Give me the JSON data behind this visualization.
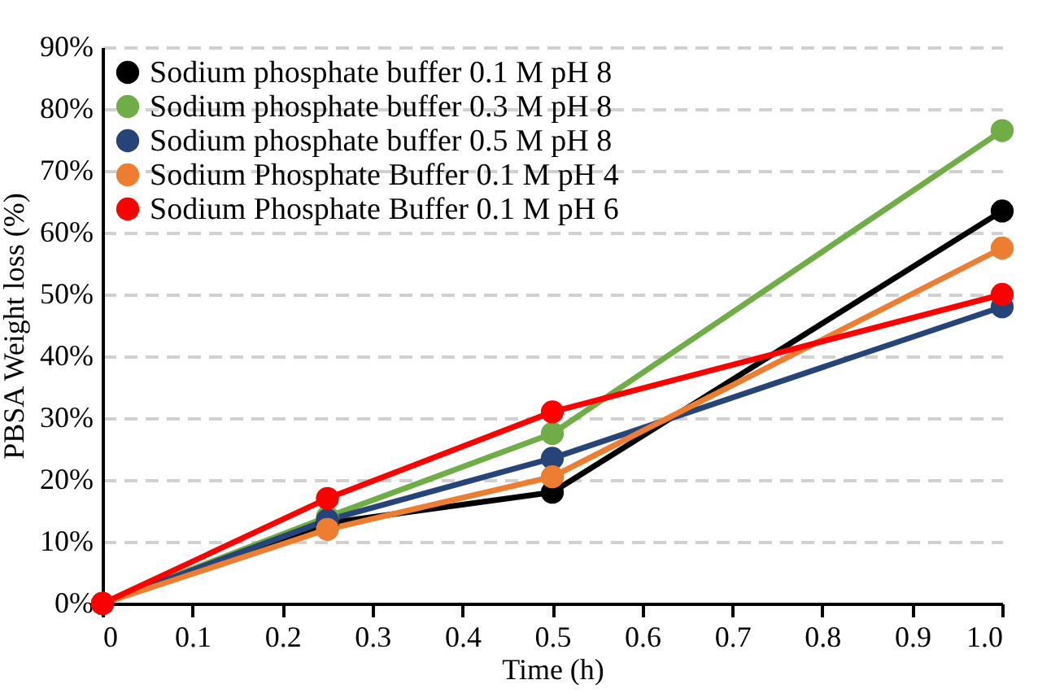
{
  "chart_data": {
    "type": "line",
    "xlabel": "Time (h)",
    "ylabel": "PBSA Weight loss (%)",
    "x": [
      0,
      0.25,
      0.5,
      1.0
    ],
    "series": [
      {
        "name": "Sodium phosphate buffer 0.1 M pH 8",
        "color": "#000000",
        "values": [
          0,
          13,
          18,
          63.5
        ]
      },
      {
        "name": "Sodium phosphate buffer 0.3 M pH 8",
        "color": "#70ad47",
        "values": [
          0,
          14,
          27.5,
          76.5
        ]
      },
      {
        "name": "Sodium phosphate buffer 0.5 M pH 8",
        "color": "#264478",
        "values": [
          0,
          13.5,
          23.5,
          48
        ]
      },
      {
        "name": "Sodium Phosphate Buffer 0.1 M pH 4",
        "color": "#ed7d31",
        "values": [
          0,
          12,
          20.5,
          57.5
        ]
      },
      {
        "name": "Sodium Phosphate Buffer 0.1 M pH 6",
        "color": "#ff0000",
        "values": [
          0,
          17,
          31,
          50
        ]
      }
    ],
    "xlim": [
      0,
      1.0
    ],
    "xticks": [
      0,
      0.1,
      0.2,
      0.3,
      0.4,
      0.5,
      0.6,
      0.7,
      0.8,
      0.9,
      {
        "value": 1.0,
        "label": "1.0"
      }
    ],
    "ylim": [
      0,
      90
    ],
    "yticks": [
      {
        "value": 0,
        "label": "0%"
      },
      {
        "value": 10,
        "label": "10%"
      },
      {
        "value": 20,
        "label": "20%"
      },
      {
        "value": 30,
        "label": "30%"
      },
      {
        "value": 40,
        "label": "40%"
      },
      {
        "value": 50,
        "label": "50%"
      },
      {
        "value": 60,
        "label": "60%"
      },
      {
        "value": 70,
        "label": "70%"
      },
      {
        "value": 80,
        "label": "80%"
      },
      {
        "value": 90,
        "label": "90%"
      }
    ],
    "grid": "y",
    "legend": "top left",
    "marker": "circle",
    "line_style": "solid"
  }
}
